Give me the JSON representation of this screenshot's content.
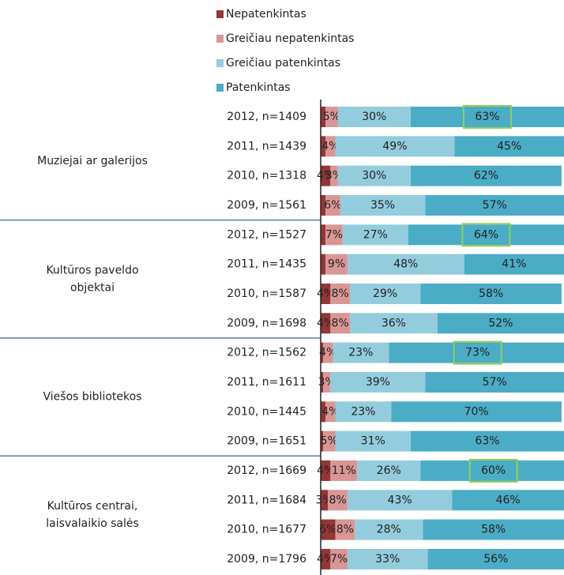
{
  "chart_data": {
    "type": "stacked-barh",
    "categories": [
      "2012, n=1409",
      "2011, n=1439",
      "2010, n=1318",
      "2009, n=1561",
      "2012, n=1527",
      "2011, n=1435",
      "2010, n=1587",
      "2009, n=1698",
      "2012, n=1562",
      "2011, n=1611",
      "2010, n=1445",
      "2009, n=1651",
      "2012, n=1669",
      "2011, n=1684",
      "2010, n=1677",
      "2009, n=1796"
    ],
    "groups": [
      {
        "name": [
          "Muziejai ar galerijos"
        ],
        "size": 4
      },
      {
        "name": [
          "Kultūros paveldo",
          "objektai"
        ],
        "size": 4
      },
      {
        "name": [
          "Viešos bibliotekos"
        ],
        "size": 4
      },
      {
        "name": [
          "Kultūros centrai,",
          "laisvalaikio salės"
        ],
        "size": 4
      }
    ],
    "series": [
      {
        "name": "Nepatenkintas",
        "color": "#943634",
        "values": [
          2,
          2,
          4,
          2,
          2,
          2,
          4,
          4,
          1,
          1,
          2,
          1,
          4,
          3,
          6,
          4
        ],
        "value_labels": [
          null,
          null,
          "4%",
          null,
          null,
          null,
          "4%",
          "4%",
          null,
          null,
          null,
          null,
          "4%",
          "3%",
          "6%",
          "4%"
        ]
      },
      {
        "name": "Greičiau nepatenkintas",
        "color": "#d99694",
        "values": [
          5,
          4,
          3,
          6,
          7,
          9,
          8,
          8,
          4,
          3,
          4,
          5,
          11,
          8,
          8,
          7
        ],
        "value_labels": [
          "5%",
          "4%",
          "3%",
          "6%",
          "7%",
          "9%",
          "8%",
          "8%",
          "4%",
          "3%",
          "4%",
          "5%",
          "11%",
          "8%",
          "8%",
          "7%"
        ]
      },
      {
        "name": "Greičiau patenkintas",
        "color": "#93cddd",
        "values": [
          30,
          49,
          30,
          35,
          27,
          48,
          29,
          36,
          23,
          39,
          23,
          31,
          26,
          43,
          28,
          33
        ],
        "value_labels": [
          "30%",
          "49%",
          "30%",
          "35%",
          "27%",
          "48%",
          "29%",
          "36%",
          "23%",
          "39%",
          "23%",
          "31%",
          "26%",
          "43%",
          "28%",
          "33%"
        ]
      },
      {
        "name": "Patenkintas",
        "color": "#4bacc6",
        "values": [
          63,
          45,
          62,
          57,
          64,
          41,
          58,
          52,
          73,
          57,
          70,
          63,
          60,
          46,
          58,
          56
        ],
        "value_labels": [
          "63%",
          "45%",
          "62%",
          "57%",
          "64%",
          "41%",
          "58%",
          "52%",
          "73%",
          "57%",
          "70%",
          "63%",
          "60%",
          "46%",
          "58%",
          "56%"
        ]
      }
    ],
    "xlim": [
      0,
      100
    ],
    "highlight_color": "#92d050"
  }
}
